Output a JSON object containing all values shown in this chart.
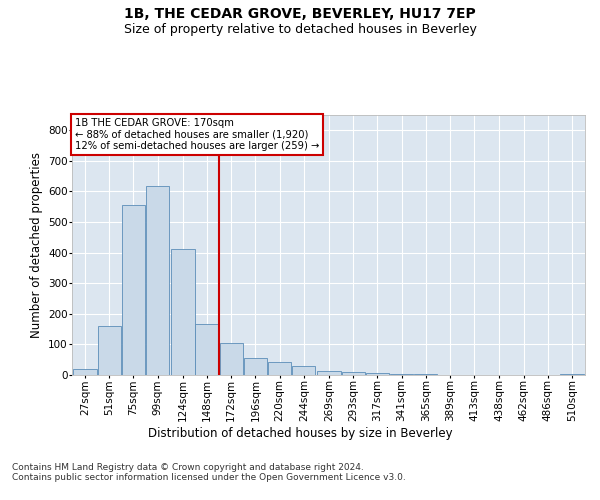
{
  "title": "1B, THE CEDAR GROVE, BEVERLEY, HU17 7EP",
  "subtitle": "Size of property relative to detached houses in Beverley",
  "xlabel": "Distribution of detached houses by size in Beverley",
  "ylabel": "Number of detached properties",
  "bar_color": "#c9d9e8",
  "bar_edge_color": "#5b8db8",
  "plot_bg_color": "#dce6f0",
  "vline_x": 172,
  "vline_color": "#cc0000",
  "annotation_text": "1B THE CEDAR GROVE: 170sqm\n← 88% of detached houses are smaller (1,920)\n12% of semi-detached houses are larger (259) →",
  "annotation_box_color": "#cc0000",
  "categories": [
    "27sqm",
    "51sqm",
    "75sqm",
    "99sqm",
    "124sqm",
    "148sqm",
    "172sqm",
    "196sqm",
    "220sqm",
    "244sqm",
    "269sqm",
    "293sqm",
    "317sqm",
    "341sqm",
    "365sqm",
    "389sqm",
    "413sqm",
    "438sqm",
    "462sqm",
    "486sqm",
    "510sqm"
  ],
  "bin_edges": [
    27,
    51,
    75,
    99,
    124,
    148,
    172,
    196,
    220,
    244,
    269,
    293,
    317,
    341,
    365,
    389,
    413,
    438,
    462,
    486,
    510
  ],
  "bin_width": 24,
  "values": [
    20,
    161,
    557,
    617,
    413,
    167,
    103,
    57,
    42,
    31,
    14,
    11,
    6,
    4,
    3,
    1,
    1,
    0,
    0,
    0,
    4
  ],
  "ylim": [
    0,
    850
  ],
  "yticks": [
    0,
    100,
    200,
    300,
    400,
    500,
    600,
    700,
    800
  ],
  "footer_text": "Contains HM Land Registry data © Crown copyright and database right 2024.\nContains public sector information licensed under the Open Government Licence v3.0.",
  "title_fontsize": 10,
  "subtitle_fontsize": 9,
  "axis_label_fontsize": 8.5,
  "tick_fontsize": 7.5,
  "footer_fontsize": 6.5
}
